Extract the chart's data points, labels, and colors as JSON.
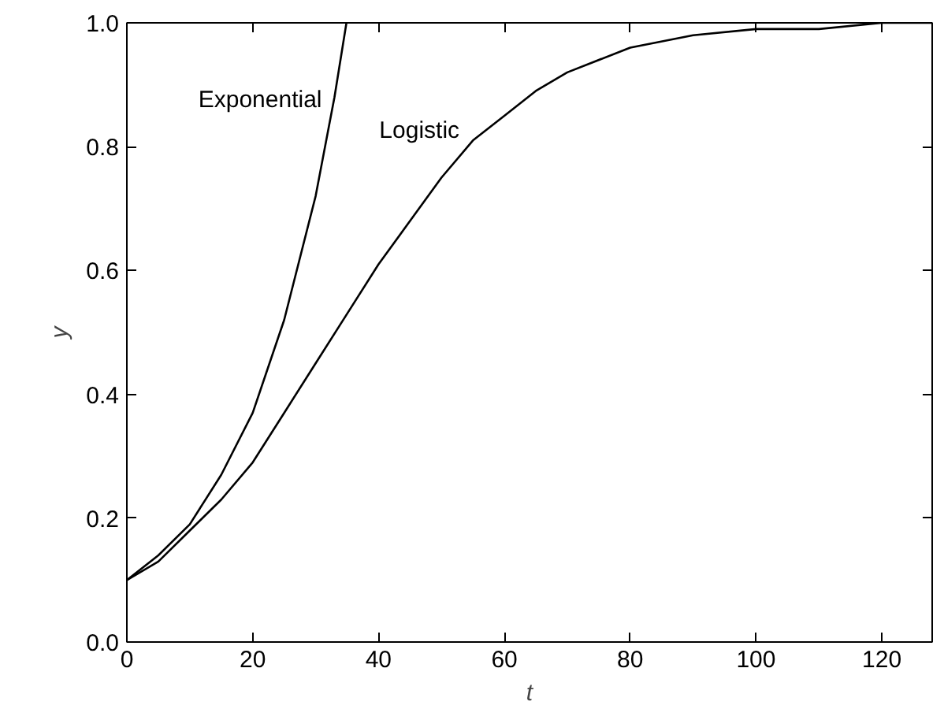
{
  "chart_data": {
    "type": "line",
    "xlabel": "t",
    "ylabel": "y",
    "xlim": [
      0,
      128
    ],
    "ylim": [
      0,
      1.0
    ],
    "xticks": [
      0,
      20,
      40,
      60,
      80,
      100,
      120
    ],
    "yticks": [
      {
        "value": 0,
        "label": "0.0"
      },
      0.2,
      0.4,
      0.6,
      0.8,
      {
        "value": 1.0,
        "label": "1.0"
      }
    ],
    "grid": false,
    "marker": "none",
    "line_style": "solid",
    "series": [
      {
        "name": "Exponential",
        "color": "#000000",
        "x": [
          0,
          5,
          10,
          15,
          20,
          25,
          30,
          33,
          34.9
        ],
        "values": [
          0.1,
          0.14,
          0.19,
          0.27,
          0.37,
          0.52,
          0.72,
          0.88,
          1.0
        ]
      },
      {
        "name": "Logistic",
        "color": "#000000",
        "x": [
          0,
          5,
          10,
          15,
          20,
          25,
          30,
          35,
          40,
          45,
          50,
          55,
          60,
          65,
          70,
          80,
          90,
          100,
          110,
          120,
          128
        ],
        "values": [
          0.1,
          0.13,
          0.18,
          0.23,
          0.29,
          0.37,
          0.45,
          0.53,
          0.61,
          0.68,
          0.75,
          0.81,
          0.85,
          0.89,
          0.92,
          0.96,
          0.98,
          0.99,
          0.99,
          1.0,
          1.0
        ]
      }
    ]
  }
}
